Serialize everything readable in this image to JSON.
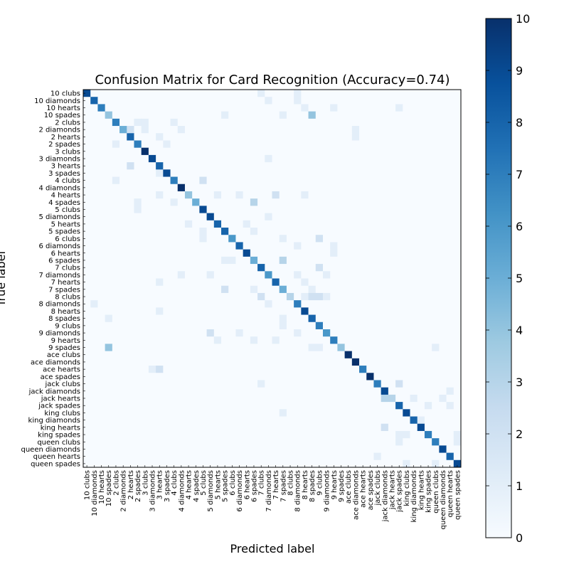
{
  "chart_data": {
    "type": "heatmap",
    "title": "Confusion Matrix for Card Recognition (Accuracy=0.74)",
    "xlabel": "Predicted label",
    "ylabel": "True label",
    "colormap": "Blues",
    "vmin": 0,
    "vmax": 10,
    "colorbar_ticks": [
      "0",
      "1",
      "2",
      "3",
      "4",
      "5",
      "6",
      "7",
      "8",
      "9",
      "10"
    ],
    "labels": [
      "10 clubs",
      "10 diamonds",
      "10 hearts",
      "10 spades",
      "2 clubs",
      "2 diamonds",
      "2 hearts",
      "2 spades",
      "3 clubs",
      "3 diamonds",
      "3 hearts",
      "3 spades",
      "4 clubs",
      "4 diamonds",
      "4 hearts",
      "4 spades",
      "5 clubs",
      "5 diamonds",
      "5 hearts",
      "5 spades",
      "6 clubs",
      "6 diamonds",
      "6 hearts",
      "6 spades",
      "7 clubs",
      "7 diamonds",
      "7 hearts",
      "7 spades",
      "8 clubs",
      "8 diamonds",
      "8 hearts",
      "8 spades",
      "9 clubs",
      "9 diamonds",
      "9 hearts",
      "9 spades",
      "ace clubs",
      "ace diamonds",
      "ace hearts",
      "ace spades",
      "jack clubs",
      "jack diamonds",
      "jack hearts",
      "jack spades",
      "king clubs",
      "king diamonds",
      "king hearts",
      "king spades",
      "queen clubs",
      "queen diamonds",
      "queen hearts",
      "queen spades"
    ],
    "diagonal": [
      9,
      8,
      7,
      4,
      7,
      5,
      8,
      7,
      10,
      9,
      8,
      9,
      7,
      10,
      4,
      5,
      9,
      9,
      8,
      8,
      6,
      8,
      9,
      5,
      8,
      6,
      8,
      5,
      3,
      7,
      9,
      8,
      7,
      6,
      7,
      4,
      10,
      10,
      7,
      10,
      7,
      9,
      3,
      8,
      9,
      8,
      9,
      7,
      7,
      9,
      8,
      9
    ],
    "off_diagonal": [
      [
        0,
        24,
        1
      ],
      [
        0,
        29,
        1
      ],
      [
        1,
        25,
        1
      ],
      [
        1,
        29,
        1
      ],
      [
        2,
        30,
        1
      ],
      [
        2,
        34,
        1
      ],
      [
        2,
        43,
        1
      ],
      [
        3,
        19,
        1
      ],
      [
        3,
        27,
        1
      ],
      [
        3,
        31,
        4
      ],
      [
        4,
        7,
        1
      ],
      [
        4,
        8,
        1
      ],
      [
        4,
        12,
        1
      ],
      [
        5,
        6,
        2
      ],
      [
        5,
        8,
        1
      ],
      [
        5,
        13,
        1
      ],
      [
        5,
        37,
        1
      ],
      [
        6,
        10,
        1
      ],
      [
        6,
        37,
        1
      ],
      [
        7,
        4,
        1
      ],
      [
        7,
        11,
        1
      ],
      [
        9,
        25,
        1
      ],
      [
        10,
        6,
        2
      ],
      [
        11,
        10,
        1
      ],
      [
        12,
        4,
        1
      ],
      [
        12,
        16,
        2
      ],
      [
        14,
        10,
        1
      ],
      [
        14,
        18,
        1
      ],
      [
        14,
        21,
        1
      ],
      [
        14,
        26,
        2
      ],
      [
        14,
        30,
        1
      ],
      [
        15,
        7,
        1
      ],
      [
        15,
        12,
        1
      ],
      [
        15,
        23,
        3
      ],
      [
        16,
        7,
        1
      ],
      [
        17,
        25,
        1
      ],
      [
        18,
        14,
        1
      ],
      [
        18,
        22,
        1
      ],
      [
        19,
        16,
        1
      ],
      [
        19,
        23,
        1
      ],
      [
        20,
        16,
        1
      ],
      [
        20,
        27,
        1
      ],
      [
        20,
        32,
        2
      ],
      [
        21,
        29,
        1
      ],
      [
        21,
        34,
        1
      ],
      [
        22,
        34,
        1
      ],
      [
        23,
        19,
        1
      ],
      [
        23,
        20,
        1
      ],
      [
        23,
        27,
        3
      ],
      [
        24,
        32,
        2
      ],
      [
        25,
        13,
        1
      ],
      [
        25,
        17,
        1
      ],
      [
        25,
        29,
        1
      ],
      [
        25,
        33,
        1
      ],
      [
        26,
        10,
        1
      ],
      [
        26,
        30,
        1
      ],
      [
        27,
        19,
        2
      ],
      [
        27,
        23,
        1
      ],
      [
        27,
        31,
        1
      ],
      [
        28,
        24,
        2
      ],
      [
        28,
        30,
        1
      ],
      [
        28,
        31,
        2
      ],
      [
        28,
        32,
        2
      ],
      [
        28,
        33,
        1
      ],
      [
        29,
        1,
        1
      ],
      [
        29,
        25,
        1
      ],
      [
        30,
        10,
        1
      ],
      [
        31,
        3,
        1
      ],
      [
        31,
        27,
        1
      ],
      [
        32,
        27,
        1
      ],
      [
        33,
        17,
        2
      ],
      [
        33,
        21,
        1
      ],
      [
        33,
        29,
        1
      ],
      [
        34,
        18,
        1
      ],
      [
        34,
        23,
        1
      ],
      [
        34,
        26,
        1
      ],
      [
        35,
        3,
        4
      ],
      [
        35,
        31,
        1
      ],
      [
        35,
        32,
        1
      ],
      [
        35,
        48,
        1
      ],
      [
        38,
        9,
        1
      ],
      [
        38,
        10,
        2
      ],
      [
        40,
        24,
        1
      ],
      [
        40,
        43,
        2
      ],
      [
        41,
        50,
        1
      ],
      [
        42,
        41,
        3
      ],
      [
        42,
        45,
        1
      ],
      [
        42,
        49,
        1
      ],
      [
        43,
        47,
        1
      ],
      [
        43,
        50,
        1
      ],
      [
        44,
        27,
        1
      ],
      [
        45,
        46,
        1
      ],
      [
        46,
        41,
        2
      ],
      [
        47,
        43,
        1
      ],
      [
        47,
        44,
        1
      ],
      [
        47,
        51,
        1
      ],
      [
        48,
        43,
        1
      ],
      [
        48,
        51,
        1
      ],
      [
        50,
        40,
        1
      ],
      [
        51,
        44,
        1
      ],
      [
        51,
        48,
        1
      ]
    ]
  }
}
